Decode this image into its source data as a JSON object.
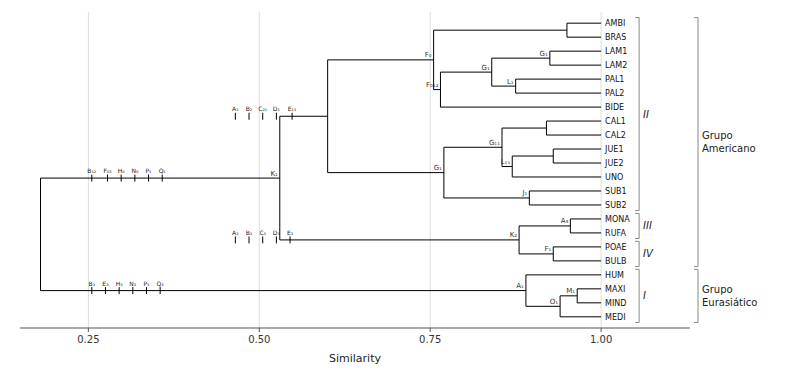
{
  "chart_data": {
    "type": "dendrogram",
    "x_label": "Similarity",
    "xlim": [
      0.15,
      1.13
    ],
    "xticks": [
      0.25,
      {
        "value": 0.5,
        "label": "0.50"
      },
      0.75,
      {
        "value": 1.0,
        "label": "1.00"
      }
    ],
    "grid": true,
    "color": "#000000",
    "leaf_similarity": 1.0,
    "taxa": [
      "AMBI",
      "BRAS",
      "LAM1",
      "LAM2",
      "PAL1",
      "PAL2",
      "BIDE",
      "CAL1",
      "CAL2",
      "JUE1",
      "JUE2",
      "UNO",
      "SUB1",
      "SUB2",
      "MONA",
      "RUFA",
      "POAE",
      "BULB",
      "HUM",
      "MAXI",
      "MIND",
      "MEDI"
    ],
    "tree": {
      "sim": 0.18,
      "left": {
        "sim": 0.53,
        "left": {
          "sim": 0.6,
          "left": {
            "sim": 0.755,
            "left": {
              "sim": 0.95,
              "left": "AMBI",
              "right": "BRAS"
            },
            "right": {
              "sim": 0.765,
              "left": {
                "sim": 0.84,
                "left": {
                  "sim": 0.925,
                  "left": "LAM1",
                  "right": "LAM2"
                },
                "right": {
                  "sim": 0.875,
                  "left": "PAL1",
                  "right": "PAL2"
                }
              },
              "right": "BIDE"
            }
          },
          "right": {
            "sim": 0.77,
            "left": {
              "sim": 0.855,
              "left": {
                "sim": 0.92,
                "left": "CAL1",
                "right": "CAL2"
              },
              "right": {
                "sim": 0.87,
                "left": {
                  "sim": 0.93,
                  "left": "JUE1",
                  "right": "JUE2"
                },
                "right": "UNO"
              }
            },
            "right": {
              "sim": 0.895,
              "left": "SUB1",
              "right": "SUB2"
            }
          }
        },
        "right": {
          "sim": 0.88,
          "left": {
            "sim": 0.955,
            "left": "MONA",
            "right": "RUFA"
          },
          "right": {
            "sim": 0.93,
            "left": "POAE",
            "right": "BULB"
          }
        }
      },
      "right": {
        "sim": 0.89,
        "left": "HUM",
        "right": {
          "sim": 0.94,
          "left": {
            "sim": 0.965,
            "left": "MAXI",
            "right": "MIND"
          },
          "right": "MEDI"
        }
      }
    },
    "char_marks": [
      {
        "between": [
          "AMBI",
          "SUB2"
        ],
        "marks": [
          {
            "x": 0.465,
            "label": "A₁"
          },
          {
            "x": 0.485,
            "label": "B₂"
          },
          {
            "x": 0.505,
            "label": "C₂₁"
          },
          {
            "x": 0.525,
            "label": "D₁"
          },
          {
            "x": 0.548,
            "label": "E₁₁"
          }
        ]
      },
      {
        "between": [
          "MONA",
          "BULB"
        ],
        "marks": [
          {
            "x": 0.465,
            "label": "A₃"
          },
          {
            "x": 0.485,
            "label": "B₃"
          },
          {
            "x": 0.505,
            "label": "C₃"
          },
          {
            "x": 0.525,
            "label": "D₃"
          },
          {
            "x": 0.545,
            "label": "E₃"
          }
        ]
      },
      {
        "between": [
          "AMBI",
          "BULB"
        ],
        "marks": [
          {
            "x": 0.255,
            "label": "B₁₂"
          },
          {
            "x": 0.278,
            "label": "F₀₃"
          },
          {
            "x": 0.298,
            "label": "H₀"
          },
          {
            "x": 0.318,
            "label": "N₀"
          },
          {
            "x": 0.338,
            "label": "P₁"
          },
          {
            "x": 0.358,
            "label": "Q₁"
          }
        ]
      },
      {
        "between": [
          "HUM",
          "MEDI"
        ],
        "marks": [
          {
            "x": 0.255,
            "label": "B₃"
          },
          {
            "x": 0.275,
            "label": "E₃"
          },
          {
            "x": 0.295,
            "label": "H₃"
          },
          {
            "x": 0.315,
            "label": "N₃"
          },
          {
            "x": 0.335,
            "label": "P₃"
          },
          {
            "x": 0.355,
            "label": "Q₃"
          }
        ]
      }
    ],
    "node_labels": [
      {
        "x": 0.755,
        "label": "F₀",
        "between": [
          "AMBI",
          "BIDE"
        ]
      },
      {
        "x": 0.765,
        "label": "F₀₁₂",
        "between": [
          "PAL2",
          "BIDE"
        ]
      },
      {
        "x": 0.84,
        "label": "G₁",
        "between": [
          "LAM2",
          "PAL1"
        ]
      },
      {
        "x": 0.925,
        "label": "G₁",
        "between": [
          "LAM1",
          "LAM2"
        ]
      },
      {
        "x": 0.875,
        "label": "L₁",
        "between": [
          "PAL1",
          "PAL2"
        ]
      },
      {
        "x": 0.855,
        "label": "G₁₁",
        "between": [
          "CAL2",
          "JUE1"
        ]
      },
      {
        "x": 0.87,
        "label": "L₁₁",
        "between": [
          "JUE2",
          "UNO"
        ]
      },
      {
        "x": 0.895,
        "label": "J₁",
        "between": [
          "SUB1",
          "SUB2"
        ]
      },
      {
        "x": 0.77,
        "label": "G₁",
        "between": [
          "UNO",
          "SUB1"
        ]
      },
      {
        "x": 0.53,
        "label": "K₁",
        "between": [
          "SUB2",
          "MONA"
        ]
      },
      {
        "x": 0.955,
        "label": "A₃",
        "between": [
          "MONA",
          "RUFA"
        ]
      },
      {
        "x": 0.88,
        "label": "K₂",
        "between": [
          "RUFA",
          "POAE"
        ]
      },
      {
        "x": 0.93,
        "label": "F₁",
        "between": [
          "POAE",
          "BULB"
        ]
      },
      {
        "x": 0.89,
        "label": "A₁",
        "between": [
          "HUM",
          "MAXI"
        ]
      },
      {
        "x": 0.965,
        "label": "M₁",
        "between": [
          "MAXI",
          "MIND"
        ]
      },
      {
        "x": 0.94,
        "label": "O₁",
        "between": [
          "MIND",
          "MEDI"
        ]
      }
    ],
    "groups": [
      {
        "label": "II",
        "from": "AMBI",
        "to": "SUB2"
      },
      {
        "label": "III",
        "from": "MONA",
        "to": "RUFA"
      },
      {
        "label": "IV",
        "from": "POAE",
        "to": "BULB"
      },
      {
        "label": "I",
        "from": "HUM",
        "to": "MEDI"
      }
    ],
    "outer_groups": [
      {
        "label": "Grupo\nAmericano",
        "from": "AMBI",
        "to": "BULB"
      },
      {
        "label": "Grupo\nEurasiático",
        "from": "HUM",
        "to": "MEDI"
      }
    ]
  }
}
